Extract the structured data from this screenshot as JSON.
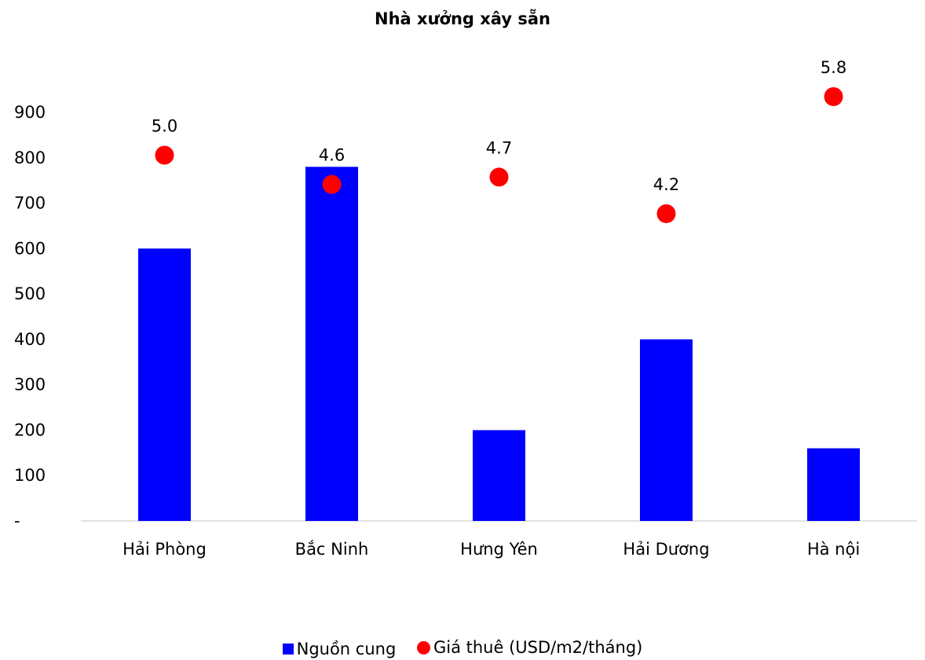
{
  "chart_data": {
    "type": "bar",
    "title": "Nhà xưởng xây sẵn",
    "categories": [
      "Hải Phòng",
      "Bắc Ninh",
      "Hưng Yên",
      "Hải Dương",
      "Hà nội"
    ],
    "series": [
      {
        "name": "Nguồn cung",
        "type": "bar",
        "color": "#0000ff",
        "values": [
          600,
          780,
          200,
          400,
          160
        ]
      },
      {
        "name": "Giá thuê (USD/m2/tháng)",
        "type": "scatter",
        "color": "#ff0000",
        "values": [
          5.0,
          4.6,
          4.7,
          4.2,
          5.8
        ],
        "labels": [
          "5.0",
          "4.6",
          "4.7",
          "4.2",
          "5.8"
        ]
      }
    ],
    "y_ticks": [
      "-",
      "100",
      "200",
      "300",
      "400",
      "500",
      "600",
      "700",
      "800",
      "900"
    ],
    "ylim": [
      0,
      900
    ],
    "y2lim": [
      0,
      5.8
    ],
    "grid": false,
    "legend_position": "bottom"
  }
}
